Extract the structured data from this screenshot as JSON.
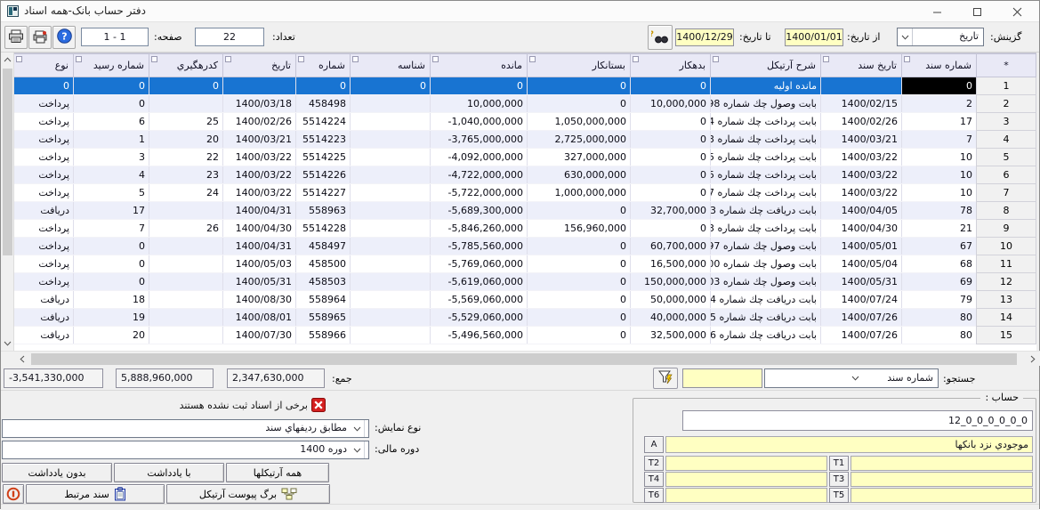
{
  "window": {
    "title": "دفتر حساب بانک-همه اسناد"
  },
  "toolbar": {
    "count_label": "تعداد:",
    "count_value": "22",
    "page_label": "صفحه:",
    "page_value": "1 - 1",
    "select_label": "گزینش:",
    "select_value": "تاریخ",
    "from_date_label": "از تاریخ:",
    "from_date_value": "1400/01/01",
    "to_date_label": "تا تاریخ:",
    "to_date_value": "1400/12/29"
  },
  "table": {
    "headers": [
      "*",
      "شماره سند",
      "تاریخ سند",
      "شرح آرتیکل",
      "بدهکار",
      "بستانکار",
      "مانده",
      "شناسه",
      "شماره",
      "تاریخ",
      "کدرهگیري",
      "شماره رسید",
      "نوع"
    ],
    "selection": {
      "row": 0,
      "col": 1
    },
    "rows": [
      [
        "1",
        "0",
        "",
        "مانده اولیه",
        "0",
        "0",
        "0",
        "0",
        "0",
        "",
        "0",
        "0",
        "0"
      ],
      [
        "2",
        "2",
        "1400/02/15",
        "بابت وصول چك شماره 98",
        "10,000,000",
        "0",
        "10,000,000",
        "",
        "458498",
        "1400/03/18",
        "",
        "0",
        "پرداخت"
      ],
      [
        "3",
        "17",
        "1400/02/26",
        "بابت پرداخت چك شماره 4",
        "0",
        "1,050,000,000",
        "-1,040,000,000",
        "",
        "5514224",
        "1400/02/26",
        "25",
        "6",
        "پرداخت"
      ],
      [
        "4",
        "7",
        "1400/03/21",
        "بابت پرداخت چك شماره 3",
        "0",
        "2,725,000,000",
        "-3,765,000,000",
        "",
        "5514223",
        "1400/03/21",
        "20",
        "1",
        "پرداخت"
      ],
      [
        "5",
        "10",
        "1400/03/22",
        "بابت پرداخت چك شماره 5",
        "0",
        "327,000,000",
        "-4,092,000,000",
        "",
        "5514225",
        "1400/03/22",
        "22",
        "3",
        "پرداخت"
      ],
      [
        "6",
        "10",
        "1400/03/22",
        "بابت پرداخت چك شماره 5",
        "0",
        "630,000,000",
        "-4,722,000,000",
        "",
        "5514226",
        "1400/03/22",
        "23",
        "4",
        "پرداخت"
      ],
      [
        "7",
        "10",
        "1400/03/22",
        "بابت پرداخت چك شماره 7",
        "0",
        "1,000,000,000",
        "-5,722,000,000",
        "",
        "5514227",
        "1400/03/22",
        "24",
        "5",
        "پرداخت"
      ],
      [
        "8",
        "78",
        "1400/04/05",
        "بابت دریافت چك شماره 3",
        "32,700,000",
        "0",
        "-5,689,300,000",
        "",
        "558963",
        "1400/04/31",
        "",
        "17",
        "دریافت"
      ],
      [
        "9",
        "21",
        "1400/04/30",
        "بابت پرداخت چك شماره 3",
        "0",
        "156,960,000",
        "-5,846,260,000",
        "",
        "5514228",
        "1400/04/30",
        "26",
        "7",
        "پرداخت"
      ],
      [
        "10",
        "67",
        "1400/05/01",
        "بابت وصول چك شماره 97",
        "60,700,000",
        "0",
        "-5,785,560,000",
        "",
        "458497",
        "1400/04/31",
        "",
        "0",
        "پرداخت"
      ],
      [
        "11",
        "68",
        "1400/05/04",
        "بابت وصول چك شماره 00",
        "16,500,000",
        "0",
        "-5,769,060,000",
        "",
        "458500",
        "1400/05/03",
        "",
        "0",
        "پرداخت"
      ],
      [
        "12",
        "69",
        "1400/05/31",
        "بابت وصول چك شماره 03",
        "150,000,000",
        "0",
        "-5,619,060,000",
        "",
        "458503",
        "1400/05/31",
        "",
        "0",
        "پرداخت"
      ],
      [
        "13",
        "79",
        "1400/07/24",
        "بابت دریافت چك شماره 4",
        "50,000,000",
        "0",
        "-5,569,060,000",
        "",
        "558964",
        "1400/08/30",
        "",
        "18",
        "دریافت"
      ],
      [
        "14",
        "80",
        "1400/07/26",
        "بابت دریافت چك شماره 5",
        "40,000,000",
        "0",
        "-5,529,060,000",
        "",
        "558965",
        "1400/08/01",
        "",
        "19",
        "دریافت"
      ],
      [
        "15",
        "80",
        "1400/07/26",
        "بابت دریافت چك شماره 6",
        "32,500,000",
        "0",
        "-5,496,560,000",
        "",
        "558966",
        "1400/07/30",
        "",
        "20",
        "دریافت"
      ]
    ]
  },
  "totals": {
    "label": "جمع:",
    "debit": "2,347,630,000",
    "credit": "5,888,960,000",
    "balance": "-3,541,330,000"
  },
  "search": {
    "label": "جستجو:",
    "field": "شماره سند",
    "query": ""
  },
  "notice": {
    "text": "برخی از اسناد ثبت نشده هستند"
  },
  "display": {
    "view_label": "نوع نمایش:",
    "view_value": "مطابق ردیفهاي سند",
    "period_label": "دوره مالی:",
    "period_value": "دوره 1400"
  },
  "buttons": {
    "all_articles": "همه آرتیكلها",
    "with_note": "با یادداشت",
    "without_note": "بدون یادداشت",
    "article_attachment": "برگ پیوست آرتیكل",
    "related_doc": "سند مرتبط"
  },
  "account": {
    "legend": "حساب :",
    "code": "12_0_0_0_0_0_0",
    "name": "موجودي نزد بانكها",
    "slots": [
      "A",
      "T1",
      "T2",
      "T3",
      "T4",
      "T5",
      "T6"
    ]
  },
  "colors": {
    "selected": "#1874d2",
    "row_alt": "#edeffa",
    "yellow": "#ffffc2",
    "header_bg": "#e9e9f6",
    "win_bg": "#f0f0f0",
    "error": "#d42020"
  }
}
